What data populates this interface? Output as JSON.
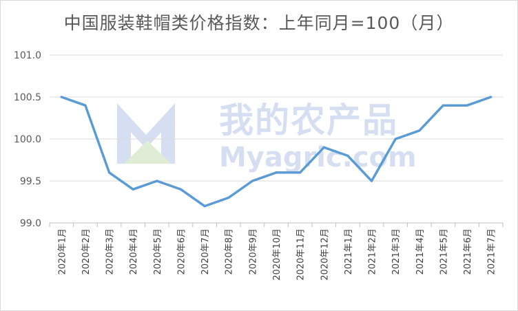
{
  "chart_data": {
    "type": "line",
    "title": "中国服装鞋帽类价格指数：上年同月=100（月）",
    "categories": [
      "2020年1月",
      "2020年2月",
      "2020年3月",
      "2020年4月",
      "2020年5月",
      "2020年6月",
      "2020年7月",
      "2020年8月",
      "2020年9月",
      "2020年10月",
      "2020年11月",
      "2020年12月",
      "2021年1月",
      "2021年2月",
      "2021年3月",
      "2021年4月",
      "2021年5月",
      "2021年6月",
      "2021年7月"
    ],
    "series": [
      {
        "values": [
          100.5,
          100.4,
          99.6,
          99.4,
          99.5,
          99.4,
          99.2,
          99.3,
          99.5,
          99.6,
          99.6,
          99.9,
          99.8,
          99.5,
          100.0,
          100.1,
          100.4,
          100.4,
          100.5
        ]
      }
    ],
    "ylim": [
      99.0,
      101.0
    ],
    "yticks": [
      "99.0",
      "99.5",
      "100.0",
      "100.5",
      "101.0"
    ],
    "grid": true,
    "line_color": "#5b9bd5",
    "grid_color": "#d9d9d9"
  },
  "watermark": {
    "text_cn": "我的农产品",
    "text_en": "Myagric.com",
    "color": "#4472c4"
  }
}
